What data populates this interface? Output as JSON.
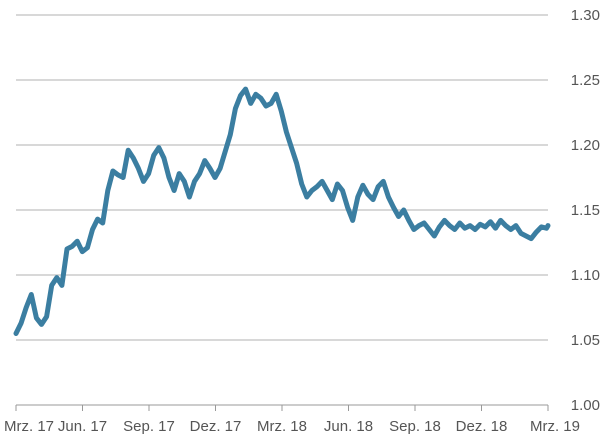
{
  "chart_data": {
    "type": "line",
    "title": "",
    "xlabel": "",
    "ylabel": "",
    "ylim": [
      1.0,
      1.3
    ],
    "y_ticks": [
      "1.00",
      "1.05",
      "1.10",
      "1.15",
      "1.20",
      "1.25",
      "1.30"
    ],
    "x_tick_labels": [
      "Mrz. 17",
      "Jun. 17",
      "Sep. 17",
      "Dez. 17",
      "Mrz. 18",
      "Jun. 18",
      "Sep. 18",
      "Dez. 18",
      "Mrz. 19"
    ],
    "y_axis_position": "right",
    "grid": "horizontal",
    "line_color": "#3b7ea1",
    "grid_color": "#cccccc",
    "series": [
      {
        "x": [
          "2017-03-01",
          "2017-03-08",
          "2017-03-15",
          "2017-03-22",
          "2017-03-29",
          "2017-04-05",
          "2017-04-12",
          "2017-04-19",
          "2017-04-26",
          "2017-05-03",
          "2017-05-10",
          "2017-05-17",
          "2017-05-24",
          "2017-05-31",
          "2017-06-07",
          "2017-06-14",
          "2017-06-21",
          "2017-06-28",
          "2017-07-05",
          "2017-07-12",
          "2017-07-19",
          "2017-07-26",
          "2017-08-02",
          "2017-08-09",
          "2017-08-16",
          "2017-08-23",
          "2017-08-30",
          "2017-09-06",
          "2017-09-13",
          "2017-09-20",
          "2017-09-27",
          "2017-10-04",
          "2017-10-11",
          "2017-10-18",
          "2017-10-25",
          "2017-11-01",
          "2017-11-08",
          "2017-11-15",
          "2017-11-22",
          "2017-11-29",
          "2017-12-06",
          "2017-12-13",
          "2017-12-20",
          "2017-12-27",
          "2018-01-03",
          "2018-01-10",
          "2018-01-17",
          "2018-01-24",
          "2018-01-31",
          "2018-02-07",
          "2018-02-14",
          "2018-02-21",
          "2018-02-28",
          "2018-03-07",
          "2018-03-14",
          "2018-03-21",
          "2018-03-28",
          "2018-04-04",
          "2018-04-11",
          "2018-04-18",
          "2018-04-25",
          "2018-05-02",
          "2018-05-09",
          "2018-05-16",
          "2018-05-23",
          "2018-05-30",
          "2018-06-06",
          "2018-06-13",
          "2018-06-20",
          "2018-06-27",
          "2018-07-04",
          "2018-07-11",
          "2018-07-18",
          "2018-07-25",
          "2018-08-01",
          "2018-08-08",
          "2018-08-15",
          "2018-08-22",
          "2018-08-29",
          "2018-09-05",
          "2018-09-12",
          "2018-09-19",
          "2018-09-26",
          "2018-10-03",
          "2018-10-10",
          "2018-10-17",
          "2018-10-24",
          "2018-10-31",
          "2018-11-07",
          "2018-11-14",
          "2018-11-21",
          "2018-11-28",
          "2018-12-05",
          "2018-12-12",
          "2018-12-19",
          "2018-12-26",
          "2019-01-02",
          "2019-01-09",
          "2019-01-16",
          "2019-01-23",
          "2019-01-30",
          "2019-02-06",
          "2019-02-13",
          "2019-02-20",
          "2019-02-27",
          "2019-03-01"
        ],
        "y": [
          1.055,
          1.063,
          1.075,
          1.085,
          1.067,
          1.062,
          1.068,
          1.092,
          1.098,
          1.092,
          1.12,
          1.122,
          1.126,
          1.118,
          1.121,
          1.135,
          1.143,
          1.14,
          1.165,
          1.18,
          1.177,
          1.175,
          1.196,
          1.19,
          1.182,
          1.172,
          1.178,
          1.192,
          1.198,
          1.19,
          1.175,
          1.165,
          1.178,
          1.172,
          1.16,
          1.172,
          1.178,
          1.188,
          1.182,
          1.175,
          1.182,
          1.195,
          1.208,
          1.228,
          1.238,
          1.243,
          1.232,
          1.239,
          1.236,
          1.23,
          1.232,
          1.239,
          1.226,
          1.21,
          1.198,
          1.186,
          1.17,
          1.16,
          1.165,
          1.168,
          1.172,
          1.165,
          1.158,
          1.17,
          1.165,
          1.152,
          1.142,
          1.16,
          1.169,
          1.162,
          1.158,
          1.168,
          1.172,
          1.16,
          1.152,
          1.145,
          1.15,
          1.142,
          1.135,
          1.138,
          1.14,
          1.135,
          1.13,
          1.137,
          1.142,
          1.138,
          1.135,
          1.14,
          1.136,
          1.138,
          1.135,
          1.139,
          1.137,
          1.141,
          1.136,
          1.142,
          1.138,
          1.135,
          1.138,
          1.132,
          1.13,
          1.128,
          1.133,
          1.137,
          1.136,
          1.138
        ]
      }
    ]
  }
}
